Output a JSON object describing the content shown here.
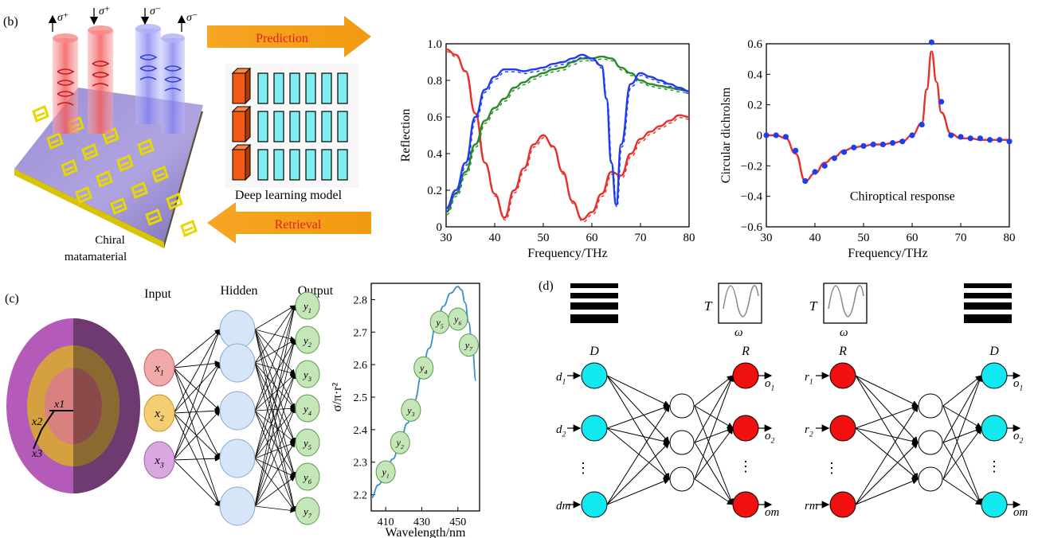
{
  "panel_b": {
    "label": "(b)",
    "sigma_labels": [
      "σ⁺",
      "σ⁺",
      "σ⁻",
      "σ⁻"
    ],
    "prediction": "Prediction",
    "retrieval": "Retrieval",
    "model_label": "Deep learning model",
    "chiral_label_1": "Chiral",
    "chiral_label_2": "matamaterial"
  },
  "panel_c": {
    "label": "(c)",
    "input": "Input",
    "hidden": "Hidden",
    "output": "Output",
    "sphere_labels": [
      "x1",
      "x2",
      "x3"
    ],
    "input_nodes": [
      "x1",
      "x2",
      "x3"
    ],
    "output_nodes": [
      "y1",
      "y2",
      "y3",
      "y4",
      "y5",
      "y6",
      "y7"
    ]
  },
  "panel_d": {
    "label": "(d)",
    "T": "T",
    "omega": "ω",
    "left_net": {
      "top_in": "D",
      "top_out": "R",
      "in": [
        "d1",
        "d2",
        "⋮",
        "dm"
      ],
      "out": [
        "o1",
        "o2",
        "⋮",
        "om"
      ]
    },
    "right_net": {
      "top_in": "R",
      "top_out": "D",
      "in": [
        "r1",
        "r2",
        "⋮",
        "rm"
      ],
      "out": [
        "o1",
        "o2",
        "⋮",
        "om"
      ]
    }
  },
  "colors": {
    "red": "#e8302a",
    "green": "#2a8a2a",
    "blue": "#1e3cf0",
    "cyan": "#12e8f0",
    "nodeRed": "#f01010",
    "orange": "#f7a51a"
  },
  "chart_data": [
    {
      "type": "line",
      "xlabel": "Frequency/THz",
      "ylabel": "Reflection",
      "xlim": [
        30,
        80
      ],
      "ylim": [
        0,
        1.0
      ],
      "xticks": [
        30,
        40,
        50,
        60,
        70,
        80
      ],
      "yticks": [
        0,
        0.2,
        0.4,
        0.6,
        0.8,
        1.0
      ],
      "series": [
        {
          "color": "red",
          "x": [
            30,
            32,
            34,
            36,
            38,
            40,
            42,
            44,
            46,
            48,
            50,
            52,
            54,
            56,
            58,
            60,
            62,
            64,
            66,
            68,
            70,
            72,
            74,
            76,
            78,
            80
          ],
          "y": [
            0.97,
            0.94,
            0.85,
            0.62,
            0.35,
            0.18,
            0.05,
            0.2,
            0.32,
            0.45,
            0.5,
            0.44,
            0.3,
            0.14,
            0.04,
            0.08,
            0.18,
            0.3,
            0.28,
            0.4,
            0.48,
            0.52,
            0.55,
            0.58,
            0.61,
            0.6
          ]
        },
        {
          "color": "green",
          "x": [
            30,
            32,
            34,
            36,
            38,
            40,
            42,
            44,
            46,
            48,
            50,
            52,
            54,
            56,
            58,
            60,
            62,
            64,
            66,
            68,
            70,
            72,
            74,
            76,
            78,
            80
          ],
          "y": [
            0.08,
            0.18,
            0.3,
            0.45,
            0.58,
            0.65,
            0.7,
            0.76,
            0.79,
            0.82,
            0.84,
            0.86,
            0.87,
            0.9,
            0.92,
            0.92,
            0.93,
            0.92,
            0.87,
            0.84,
            0.8,
            0.78,
            0.77,
            0.76,
            0.75,
            0.74
          ]
        },
        {
          "color": "blue",
          "x": [
            30,
            32,
            34,
            36,
            38,
            40,
            42,
            44,
            46,
            48,
            50,
            52,
            54,
            56,
            58,
            60,
            62,
            63,
            64,
            65,
            66,
            68,
            70,
            72,
            74,
            76,
            78,
            80
          ],
          "y": [
            0.1,
            0.2,
            0.35,
            0.6,
            0.75,
            0.82,
            0.86,
            0.86,
            0.85,
            0.86,
            0.87,
            0.89,
            0.9,
            0.92,
            0.94,
            0.92,
            0.88,
            0.7,
            0.35,
            0.12,
            0.45,
            0.78,
            0.84,
            0.82,
            0.8,
            0.78,
            0.76,
            0.74
          ]
        }
      ]
    },
    {
      "type": "line",
      "xlabel": "Frequency/THz",
      "ylabel": "Circular dichrolsm",
      "annotation": "Chiroptical response",
      "xlim": [
        30,
        80
      ],
      "ylim": [
        -0.6,
        0.6
      ],
      "xticks": [
        30,
        40,
        50,
        60,
        70,
        80
      ],
      "yticks": [
        -0.6,
        -0.4,
        -0.2,
        0,
        0.2,
        0.4,
        0.6
      ],
      "series": [
        {
          "name": "",
          "color": "red",
          "x": [
            30,
            32,
            34,
            36,
            38,
            40,
            42,
            44,
            46,
            48,
            50,
            52,
            54,
            56,
            58,
            60,
            62,
            63,
            64,
            65,
            66,
            68,
            70,
            72,
            74,
            76,
            78,
            80
          ],
          "y": [
            0.0,
            0.0,
            -0.02,
            -0.12,
            -0.3,
            -0.25,
            -0.18,
            -0.14,
            -0.1,
            -0.08,
            -0.07,
            -0.06,
            -0.06,
            -0.05,
            -0.04,
            0.0,
            0.08,
            0.3,
            0.55,
            0.35,
            0.15,
            0.01,
            -0.02,
            -0.02,
            -0.03,
            -0.03,
            -0.03,
            -0.03
          ]
        },
        {
          "name": "",
          "color": "blue",
          "x": [
            30,
            32,
            34,
            36,
            38,
            40,
            42,
            44,
            46,
            48,
            50,
            52,
            54,
            56,
            58,
            60,
            62,
            64,
            66,
            68,
            70,
            72,
            74,
            76,
            78,
            80
          ],
          "y": [
            0.0,
            0.0,
            -0.01,
            -0.1,
            -0.3,
            -0.24,
            -0.2,
            -0.15,
            -0.11,
            -0.08,
            -0.07,
            -0.06,
            -0.06,
            -0.05,
            -0.04,
            0.0,
            0.07,
            0.61,
            0.22,
            0.0,
            -0.01,
            -0.02,
            -0.02,
            -0.03,
            -0.03,
            -0.04
          ]
        }
      ]
    },
    {
      "type": "line",
      "xlabel": "Wavelength/nm",
      "ylabel": "σ/π·r²",
      "xlim": [
        402,
        462
      ],
      "ylim": [
        2.15,
        2.85
      ],
      "xticks": [
        410,
        430,
        450
      ],
      "yticks": [
        2.2,
        2.3,
        2.4,
        2.5,
        2.6,
        2.7,
        2.8
      ],
      "series": [
        {
          "name": "",
          "color": "#3a8fd0",
          "x": [
            402,
            406,
            410,
            414,
            418,
            422,
            426,
            430,
            434,
            438,
            442,
            446,
            450,
            452,
            454,
            456,
            458,
            460
          ],
          "y": [
            2.19,
            2.23,
            2.27,
            2.31,
            2.36,
            2.42,
            2.49,
            2.57,
            2.65,
            2.72,
            2.78,
            2.82,
            2.84,
            2.83,
            2.79,
            2.73,
            2.65,
            2.55
          ]
        }
      ],
      "points": [
        "y1",
        "y2",
        "y3",
        "y4",
        "y5",
        "y6",
        "y7"
      ],
      "points_x": [
        410,
        418,
        424,
        431,
        440,
        450,
        456
      ],
      "points_y": [
        2.27,
        2.36,
        2.46,
        2.59,
        2.73,
        2.74,
        2.66
      ]
    }
  ]
}
